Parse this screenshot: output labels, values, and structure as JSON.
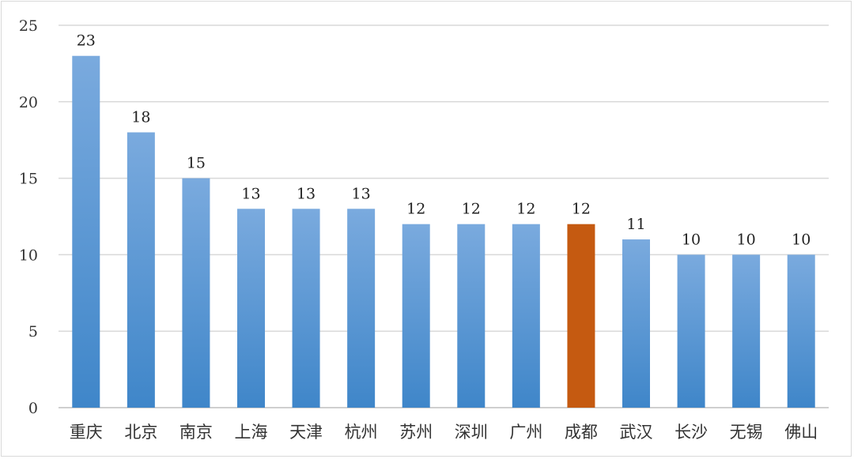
{
  "chart_data": {
    "type": "bar",
    "categories": [
      "重庆",
      "北京",
      "南京",
      "上海",
      "天津",
      "杭州",
      "苏州",
      "深圳",
      "广州",
      "成都",
      "武汉",
      "长沙",
      "无锡",
      "佛山"
    ],
    "values": [
      23,
      18,
      15,
      13,
      13,
      13,
      12,
      12,
      12,
      12,
      11,
      10,
      10,
      10
    ],
    "title": "",
    "xlabel": "",
    "ylabel": "",
    "ylim": [
      0,
      25
    ],
    "yticks": [
      0,
      5,
      10,
      15,
      20,
      25
    ],
    "grid": true,
    "legend": "none",
    "highlight_category": "成都",
    "colors": {
      "bar_top": "#7aaade",
      "bar_bottom": "#3f86c9",
      "highlight": "#c55a11",
      "grid": "#d9d9d9",
      "axis": "#bfbfbf"
    }
  }
}
